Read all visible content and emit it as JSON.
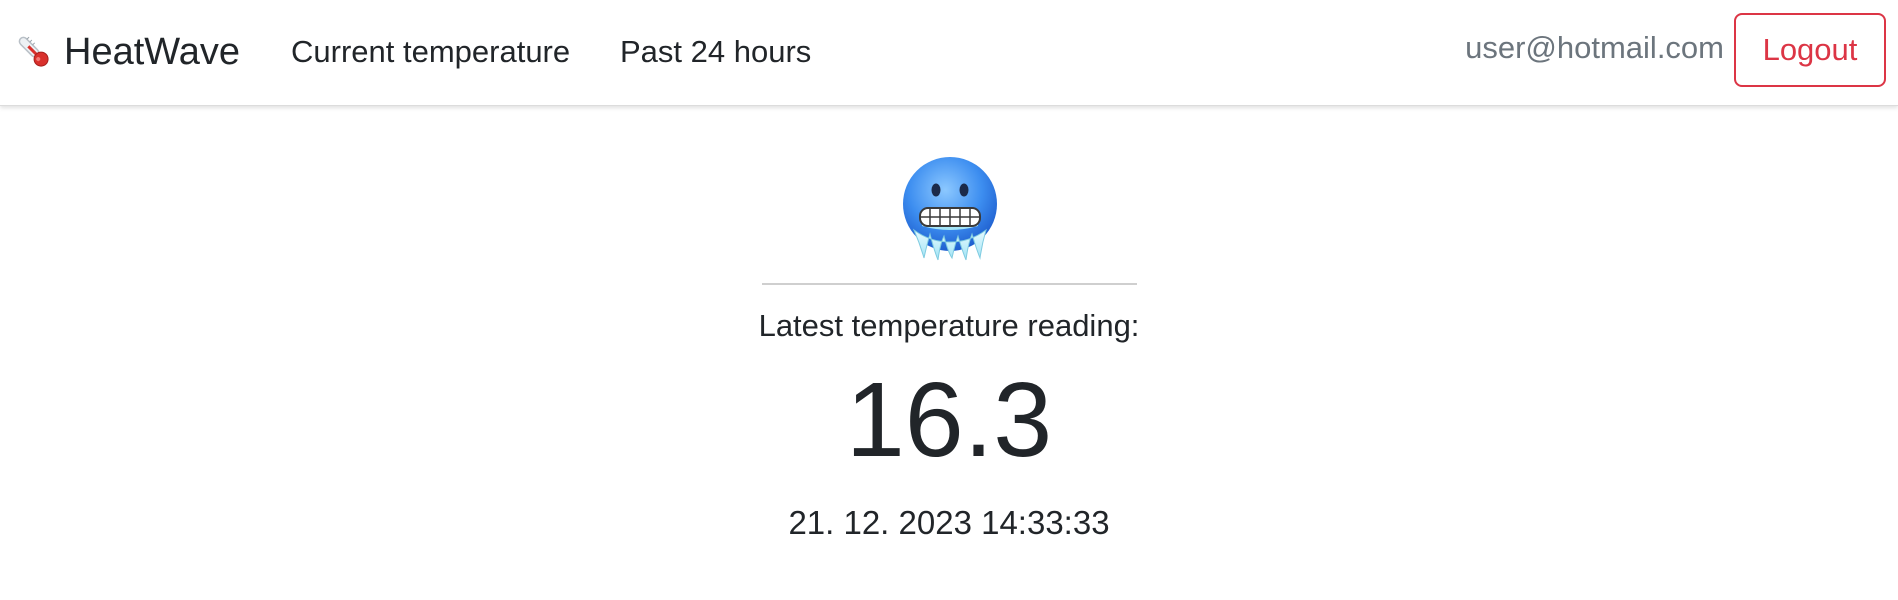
{
  "navbar": {
    "brand_icon": "thermometer-icon",
    "brand_name": "HeatWave",
    "links": {
      "current_temperature": "Current temperature",
      "past_24_hours": "Past 24 hours"
    },
    "user_email": "user@hotmail.com",
    "logout_label": "Logout"
  },
  "main": {
    "status_icon": "cold-face-icon",
    "reading_label": "Latest temperature reading:",
    "temperature_value": "16.3",
    "timestamp": "21. 12. 2023 14:33:33"
  },
  "colors": {
    "logout_accent": "#dc3545",
    "text": "#212529",
    "muted_text": "#6c757d",
    "cold_face_blue": "#3d8ef0"
  }
}
